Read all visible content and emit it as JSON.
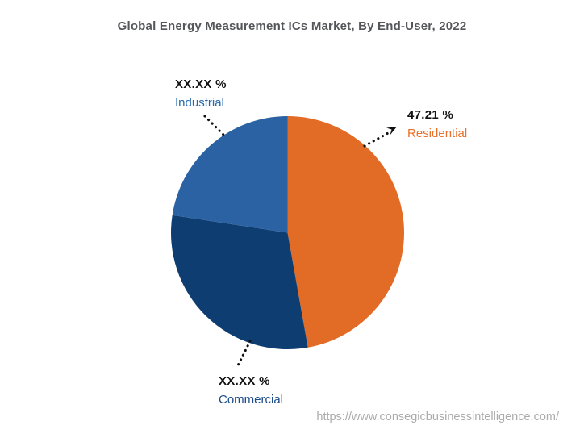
{
  "page": {
    "source_url": "https://www.consegicbusinessintelligence.com/"
  },
  "chart_data": {
    "type": "pie",
    "title": "Global Energy Measurement ICs Market, By End-User, 2022",
    "unit": "%",
    "direction": "clockwise",
    "start_angle_deg": 0,
    "legend_position": "none",
    "slices": [
      {
        "name": "Residential",
        "value_label": "47.21 %",
        "value_pct": 47.21,
        "color": "#E26B25",
        "label_color": "#E8702A"
      },
      {
        "name": "Commercial",
        "value_label": "XX.XX %",
        "value_pct": 30.2,
        "value_note": "masked on chart; estimated from arc geometry",
        "color": "#0E3D72",
        "label_color": "#1B4B8A"
      },
      {
        "name": "Industrial",
        "value_label": "XX.XX %",
        "value_pct": 22.59,
        "value_note": "masked on chart; estimated from arc geometry",
        "color": "#2B62A3",
        "label_color": "#2769AE"
      }
    ]
  }
}
